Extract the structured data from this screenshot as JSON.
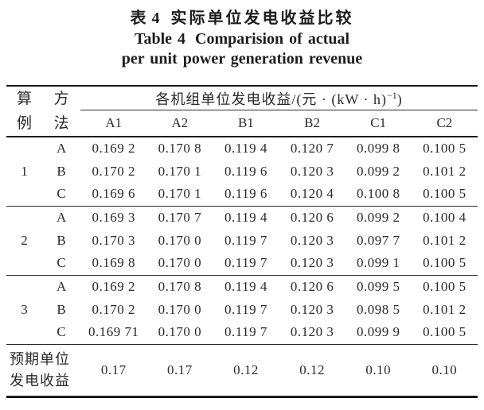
{
  "title": {
    "zh_prefix": "表 4",
    "zh_main": "实际单位发电收益比较",
    "en_prefix": "Table 4",
    "en_main": "Comparision of actual",
    "en_line2": "per unit power generation revenue"
  },
  "table": {
    "case_label": "算\n例",
    "method_label": "方\n法",
    "span_label_main": "各机组单位发电收益/(元 · (kW · h)",
    "span_label_sup": "−1",
    "span_label_close": ")",
    "unit_columns": [
      "A1",
      "A2",
      "B1",
      "B2",
      "C1",
      "C2"
    ],
    "groups": [
      {
        "case": "1",
        "rows": [
          {
            "method": "A",
            "values": [
              "0.169 2",
              "0.170 8",
              "0.119 4",
              "0.120 7",
              "0.099 8",
              "0.100 5"
            ]
          },
          {
            "method": "B",
            "values": [
              "0.170 2",
              "0.170 1",
              "0.119 6",
              "0.120 3",
              "0.099 2",
              "0.101 2"
            ]
          },
          {
            "method": "C",
            "values": [
              "0.169 6",
              "0.170 1",
              "0.119 6",
              "0.120 4",
              "0.100 8",
              "0.100 5"
            ]
          }
        ]
      },
      {
        "case": "2",
        "rows": [
          {
            "method": "A",
            "values": [
              "0.169 3",
              "0.170 7",
              "0.119 4",
              "0.120 6",
              "0.099 2",
              "0.100 4"
            ]
          },
          {
            "method": "B",
            "values": [
              "0.170 3",
              "0.170 0",
              "0.119 7",
              "0.120 3",
              "0.097 7",
              "0.101 2"
            ]
          },
          {
            "method": "C",
            "values": [
              "0.169 8",
              "0.170 0",
              "0.119 7",
              "0.120 3",
              "0.099 1",
              "0.100 5"
            ]
          }
        ]
      },
      {
        "case": "3",
        "rows": [
          {
            "method": "A",
            "values": [
              "0.169 2",
              "0.170 8",
              "0.119 4",
              "0.120 6",
              "0.099 5",
              "0.100 5"
            ]
          },
          {
            "method": "B",
            "values": [
              "0.170 2",
              "0.170 0",
              "0.119 7",
              "0.120 3",
              "0.098 5",
              "0.101 2"
            ]
          },
          {
            "method": "C",
            "values": [
              "0.169 71",
              "0.170 0",
              "0.119 7",
              "0.120 3",
              "0.099 9",
              "0.100 5"
            ]
          }
        ]
      }
    ],
    "expected": {
      "label": "预期单位\n发电收益",
      "values": [
        "0.17",
        "0.17",
        "0.12",
        "0.12",
        "0.10",
        "0.10"
      ]
    }
  }
}
